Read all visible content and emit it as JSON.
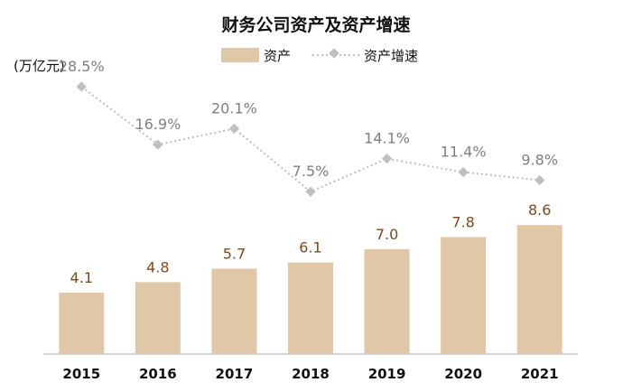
{
  "chart_data": {
    "type": "bar",
    "title": "财务公司资产及资产增速",
    "y_unit": "(万亿元)",
    "categories": [
      "2015",
      "2016",
      "2017",
      "2018",
      "2019",
      "2020",
      "2021"
    ],
    "series": [
      {
        "name": "资产",
        "type": "bar",
        "axis": "left",
        "color": "#dfc7a7",
        "values": [
          4.1,
          4.8,
          5.7,
          6.1,
          7.0,
          7.8,
          8.6
        ],
        "labels": [
          "4.1",
          "4.8",
          "5.7",
          "6.1",
          "7.0",
          "7.8",
          "8.6"
        ]
      },
      {
        "name": "资产增速",
        "type": "line",
        "axis": "right",
        "style": "dotted",
        "marker": "diamond",
        "color": "#bfbfbf",
        "values": [
          28.5,
          16.9,
          20.1,
          7.5,
          14.1,
          11.4,
          9.8
        ],
        "labels": [
          "28.5%",
          "16.9%",
          "20.1%",
          "7.5%",
          "14.1%",
          "11.4%",
          "9.8%"
        ]
      }
    ],
    "ylim": [
      0,
      20
    ],
    "y2lim": [
      -25,
      35
    ],
    "grid": false,
    "legend_position": "top-center"
  }
}
